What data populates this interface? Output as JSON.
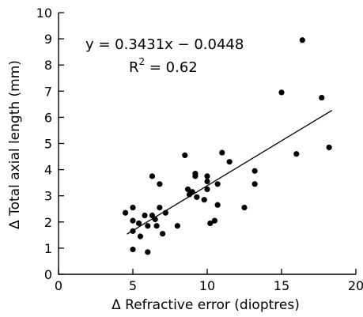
{
  "chart_data": {
    "type": "scatter",
    "xlabel": "Δ Refractive error (dioptres)",
    "ylabel": "Δ Total axial length (mm)",
    "xlim": [
      0,
      20
    ],
    "ylim": [
      0,
      10
    ],
    "x_ticks": [
      "0",
      "5",
      "10",
      "15",
      "20"
    ],
    "y_ticks": [
      "0",
      "1",
      "2",
      "3",
      "4",
      "5",
      "6",
      "7",
      "8",
      "9",
      "10"
    ],
    "grid": false,
    "annotation": {
      "equation": "y = 0.3431x − 0.0448",
      "r2_prefix": "R",
      "r2_exp": "2",
      "r2_value": " = 0.62"
    },
    "trendline": {
      "slope": 0.3431,
      "intercept": -0.0448,
      "x_range": [
        4.6,
        18.4
      ]
    },
    "points": [
      [
        4.5,
        2.35
      ],
      [
        5.0,
        2.55
      ],
      [
        5.0,
        2.05
      ],
      [
        5.0,
        1.65
      ],
      [
        5.0,
        0.95
      ],
      [
        5.4,
        1.95
      ],
      [
        5.5,
        1.45
      ],
      [
        5.8,
        2.25
      ],
      [
        6.0,
        1.85
      ],
      [
        6.0,
        0.85
      ],
      [
        6.3,
        3.75
      ],
      [
        6.3,
        2.25
      ],
      [
        6.5,
        2.1
      ],
      [
        6.6,
        1.85
      ],
      [
        6.8,
        3.45
      ],
      [
        6.8,
        2.55
      ],
      [
        7.0,
        1.55
      ],
      [
        7.2,
        2.35
      ],
      [
        8.0,
        1.85
      ],
      [
        8.5,
        4.55
      ],
      [
        8.7,
        3.25
      ],
      [
        8.8,
        3.05
      ],
      [
        9.0,
        3.15
      ],
      [
        9.2,
        3.75
      ],
      [
        9.2,
        3.85
      ],
      [
        9.3,
        2.95
      ],
      [
        9.8,
        2.85
      ],
      [
        10.0,
        3.75
      ],
      [
        10.0,
        3.55
      ],
      [
        10.0,
        3.25
      ],
      [
        10.2,
        1.95
      ],
      [
        10.5,
        2.05
      ],
      [
        10.7,
        3.45
      ],
      [
        10.7,
        2.65
      ],
      [
        11.0,
        4.65
      ],
      [
        11.5,
        4.3
      ],
      [
        12.5,
        2.55
      ],
      [
        13.2,
        3.95
      ],
      [
        13.2,
        3.45
      ],
      [
        15.0,
        6.95
      ],
      [
        16.0,
        4.6
      ],
      [
        16.4,
        8.95
      ],
      [
        17.7,
        6.75
      ],
      [
        18.2,
        4.85
      ]
    ]
  }
}
